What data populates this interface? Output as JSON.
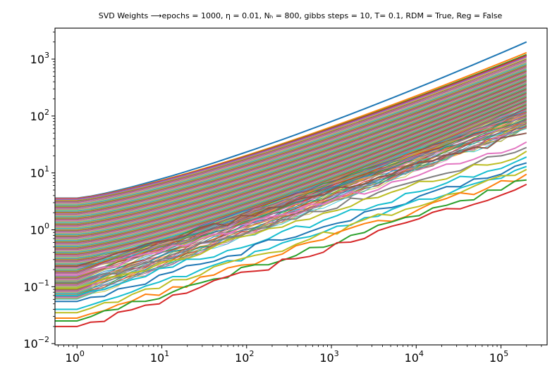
{
  "chart_data": {
    "type": "line",
    "title": "SVD Weights ⟶epochs = 1000, η = 0.01, Nₕ = 800, gibbs steps = 10, T= 0.1, RDM = True, Reg = False",
    "xlabel": "",
    "ylabel": "",
    "xscale": "log",
    "yscale": "log",
    "xlim": [
      0.55,
      350000
    ],
    "ylim": [
      0.0095,
      3500
    ],
    "grid": false,
    "legend": "none",
    "x_ticks": [
      {
        "value": 1,
        "label": "10",
        "exp": "0"
      },
      {
        "value": 10,
        "label": "10",
        "exp": "1"
      },
      {
        "value": 100,
        "label": "10",
        "exp": "2"
      },
      {
        "value": 1000,
        "label": "10",
        "exp": "3"
      },
      {
        "value": 10000,
        "label": "10",
        "exp": "4"
      },
      {
        "value": 100000,
        "label": "10",
        "exp": "5"
      }
    ],
    "y_ticks": [
      {
        "value": 0.01,
        "label": "10",
        "exp": "−2"
      },
      {
        "value": 0.1,
        "label": "10",
        "exp": "−1"
      },
      {
        "value": 1,
        "label": "10",
        "exp": "0"
      },
      {
        "value": 10,
        "label": "10",
        "exp": "1"
      },
      {
        "value": 100,
        "label": "10",
        "exp": "2"
      },
      {
        "value": 1000,
        "label": "10",
        "exp": "3"
      }
    ],
    "x_range_of_series": [
      0.55,
      200000
    ],
    "series_count_note": "hundreds of singular-value curves",
    "series": [
      {
        "color": "#1f77b4",
        "start": 3.6,
        "end": 2000,
        "noisy": false
      },
      {
        "color": "#ff7f0e",
        "start": 3.55,
        "end": 1300,
        "noisy": false
      },
      {
        "color": "#2ca02c",
        "start": 3.5,
        "end": 1200,
        "noisy": false
      },
      {
        "color": "#d62728",
        "start": 3.5,
        "end": 1150,
        "noisy": false
      },
      {
        "color": "#9467bd",
        "start": 3.45,
        "end": 1100,
        "noisy": false
      },
      {
        "color": "#8c564b",
        "start": 0.23,
        "end": 50,
        "noisy": true
      },
      {
        "color": "#e377c2",
        "start": 0.16,
        "end": 35,
        "noisy": true
      },
      {
        "color": "#7f7f7f",
        "start": 0.12,
        "end": 28,
        "noisy": true
      },
      {
        "color": "#bcbd22",
        "start": 0.095,
        "end": 24,
        "noisy": true
      },
      {
        "color": "#17becf",
        "start": 0.07,
        "end": 19,
        "noisy": true
      },
      {
        "color": "#1f77b4",
        "start": 0.055,
        "end": 15,
        "noisy": true
      },
      {
        "color": "#17becf",
        "start": 0.04,
        "end": 13,
        "noisy": true
      },
      {
        "color": "#bcbd22",
        "start": 0.035,
        "end": 11.5,
        "noisy": true
      },
      {
        "color": "#ff7f0e",
        "start": 0.028,
        "end": 9.5,
        "noisy": true
      },
      {
        "color": "#2ca02c",
        "start": 0.025,
        "end": 7.5,
        "noisy": true
      },
      {
        "color": "#d62728",
        "start": 0.02,
        "end": 6.3,
        "noisy": true
      }
    ]
  }
}
